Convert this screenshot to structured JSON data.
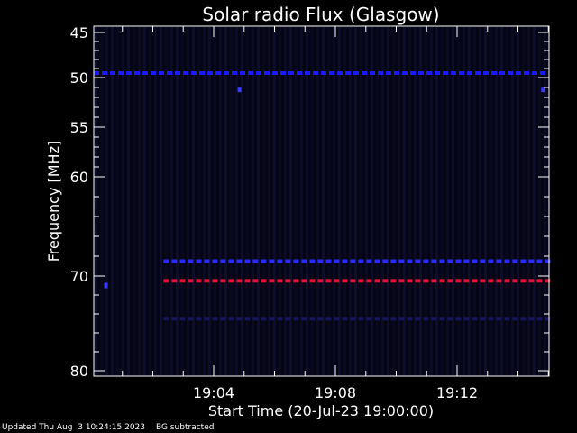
{
  "chart_data": {
    "type": "heatmap",
    "title": "Solar radio Flux (Glasgow)",
    "ylabel": "Frequency [MHz]",
    "xlabel": "Start Time (20-Jul-23 19:00:00)",
    "y_ticks": [
      "45",
      "50",
      "55",
      "60",
      "70",
      "80"
    ],
    "x_ticks": [
      "19:04",
      "19:08",
      "19:12"
    ],
    "x_range_minutes": [
      0,
      15
    ],
    "y_range_mhz": [
      45,
      80
    ],
    "grid": false,
    "colormap": [
      "#0a0a2a",
      "#0000ff",
      "#ff0000"
    ],
    "features": [
      {
        "type": "band",
        "freq": 49.5,
        "start_min": 0,
        "end_min": 15,
        "color": "#1a1aff"
      },
      {
        "type": "band",
        "freq": 68.5,
        "start_min": 2.3,
        "end_min": 15,
        "color": "#2a2aff"
      },
      {
        "type": "band",
        "freq": 70.5,
        "start_min": 2.3,
        "end_min": 15,
        "color": "#dd1133"
      },
      {
        "type": "band",
        "freq": 74.5,
        "start_min": 2.3,
        "end_min": 15,
        "color": "#151560"
      },
      {
        "type": "spot",
        "freq": 51.2,
        "min": 4.8,
        "color": "#3a3aff"
      },
      {
        "type": "spot",
        "freq": 71.0,
        "min": 0.4,
        "color": "#3a3aff"
      },
      {
        "type": "spot",
        "freq": 51.2,
        "min": 14.8,
        "color": "#3a3aff"
      }
    ]
  },
  "footer": {
    "updated": "Updated Thu Aug  3 10:24:15 2023",
    "note": "BG subtracted"
  }
}
